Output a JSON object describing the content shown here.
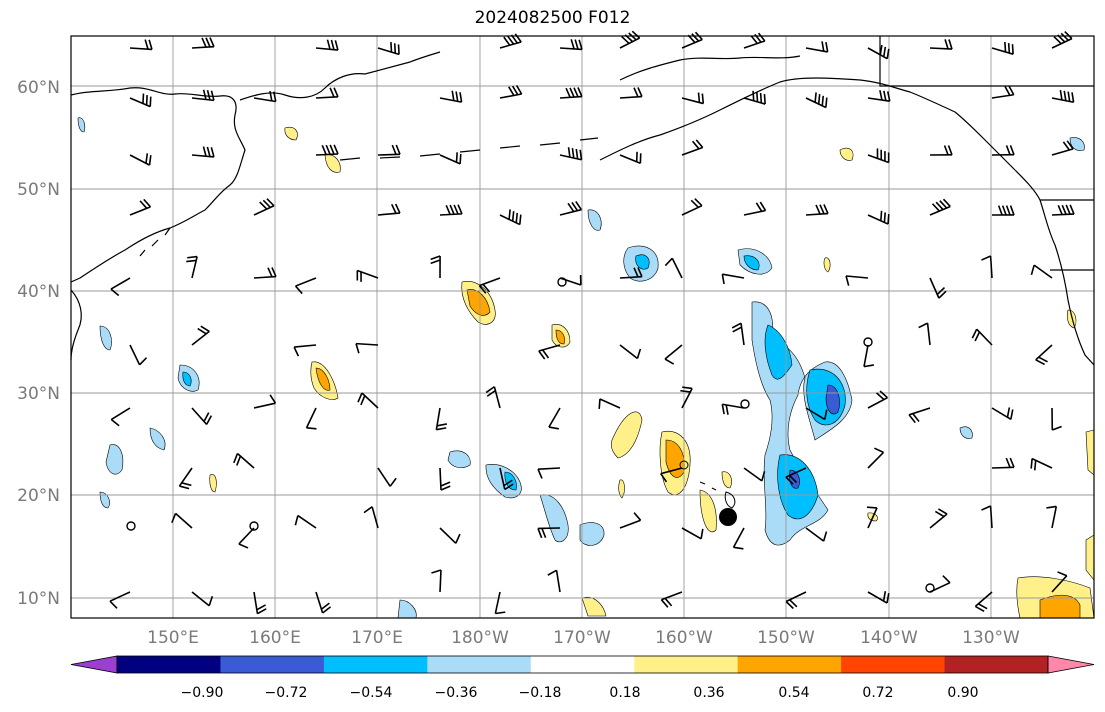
{
  "title": "2024082500 F012",
  "latitude_labels": [
    "10°N",
    "20°N",
    "30°N",
    "40°N",
    "50°N",
    "60°N"
  ],
  "longitude_labels": [
    "150°E",
    "160°E",
    "170°E",
    "180°W",
    "170°W",
    "160°W",
    "150°W",
    "140°W",
    "130°W"
  ],
  "colorbar": {
    "tick_labels": [
      "−0.90",
      "−0.72",
      "−0.54",
      "−0.36",
      "−0.18",
      "0.18",
      "0.36",
      "0.54",
      "0.72",
      "0.90"
    ],
    "colors": [
      "#9b3fd1",
      "#000080",
      "#3b5bd6",
      "#00bfff",
      "#aadcf7",
      "#ffffff",
      "#fff08a",
      "#ffa500",
      "#ff4500",
      "#b22222",
      "#ff88aa"
    ]
  },
  "field_colors": {
    "neg_weak": "#aadcf7",
    "neg_mod": "#00bfff",
    "neg_strong": "#3b5bd6",
    "pos_weak": "#fff08a",
    "pos_mod": "#ffa500"
  },
  "markers": [
    {
      "name": "storm-center",
      "lon_label": "~156°W",
      "lat_label": "~18°N"
    }
  ]
}
